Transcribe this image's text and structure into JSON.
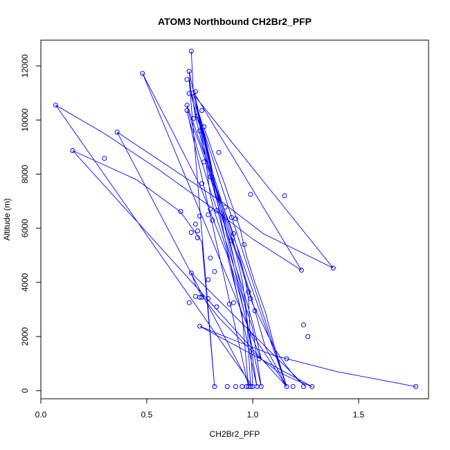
{
  "chart_data": {
    "type": "line",
    "title": "ATOM3 Northbound CH2Br2_PFP",
    "xlabel": "CH2Br2_PFP",
    "ylabel": "Altitude (m)",
    "xlim": [
      0,
      1.83
    ],
    "ylim": [
      -300,
      12950
    ],
    "xticks": [
      0.0,
      0.5,
      1.0,
      1.5
    ],
    "xtick_labels": [
      "0.0",
      "0.5",
      "1.0",
      "1.5"
    ],
    "yticks": [
      0,
      2000,
      4000,
      6000,
      8000,
      10000,
      12000
    ],
    "ytick_labels": [
      "0",
      "2000",
      "4000",
      "6000",
      "8000",
      "10000",
      "12000"
    ],
    "markers": "open-circle",
    "grid": false,
    "legend": "none",
    "series_color": "#0000ff",
    "series": [
      {
        "x": [
          0.71,
          0.72,
          0.73,
          0.74,
          0.75,
          0.76,
          0.77,
          0.78,
          0.79,
          0.8,
          0.82,
          0.85,
          0.88,
          0.91,
          0.94,
          0.97,
          0.99,
          1.02,
          0.7,
          0.71,
          0.72,
          0.74,
          0.76,
          0.78,
          0.8,
          0.83,
          0.86,
          0.9,
          0.93,
          0.96,
          0.98,
          1.0,
          0.07,
          0.3,
          0.55,
          0.8,
          1.0,
          1.23,
          0.72,
          0.73,
          0.74,
          0.76,
          0.78,
          0.8,
          0.82,
          0.85,
          0.88,
          0.92,
          0.95,
          0.97,
          0.99,
          0.36,
          0.6,
          0.85,
          1.05,
          1.38,
          0.72,
          0.74,
          0.75,
          0.77,
          0.79,
          0.81,
          0.84,
          0.87,
          0.9,
          0.93,
          0.96,
          0.98,
          1.16,
          0.15,
          0.45,
          0.66,
          0.76,
          0.82,
          0.7,
          0.71,
          0.72,
          0.73,
          0.75,
          0.76,
          0.78,
          0.8,
          0.82,
          0.85,
          0.89,
          0.92,
          0.96,
          1.0,
          1.04,
          0.48,
          0.6,
          0.75,
          0.88,
          0.95,
          0.98,
          0.69,
          0.7,
          0.72,
          0.74,
          0.77,
          0.8,
          0.84,
          0.87,
          0.91,
          0.95,
          1.0,
          1.04,
          0.73,
          0.74,
          0.76,
          0.79,
          0.82,
          0.86,
          0.9,
          0.94,
          0.97,
          1.01,
          1.06,
          1.1,
          1.16,
          0.69,
          0.7,
          0.72,
          0.75,
          0.78,
          0.81,
          0.85,
          0.89,
          0.94,
          0.98,
          1.02,
          1.06,
          1.11,
          1.16,
          0.71,
          0.72,
          0.73,
          0.75,
          0.77,
          0.8,
          0.84,
          0.88,
          0.92,
          0.96,
          1.0,
          1.05,
          1.1,
          1.15,
          1.2,
          1.25,
          0.71,
          0.73,
          0.76,
          0.8,
          0.84,
          0.89,
          0.94,
          0.99,
          1.05,
          1.12,
          1.2,
          1.28,
          0.75,
          0.9,
          1.1,
          1.4,
          1.77
        ],
        "y": [
          12540,
          11000,
          10800,
          10300,
          9900,
          9500,
          9000,
          8400,
          7800,
          7200,
          6600,
          5900,
          5100,
          4300,
          3500,
          2600,
          1700,
          150,
          11800,
          10900,
          10600,
          10100,
          9600,
          9000,
          8300,
          7600,
          6800,
          6000,
          5200,
          4300,
          3400,
          150,
          10550,
          9500,
          8200,
          6800,
          5600,
          4450,
          11050,
          10700,
          10300,
          9800,
          9200,
          8500,
          7700,
          6900,
          6000,
          5100,
          4100,
          3000,
          150,
          9550,
          8300,
          7000,
          5800,
          4530,
          10950,
          10500,
          10000,
          9400,
          8700,
          7900,
          7000,
          6100,
          5200,
          4300,
          3300,
          2300,
          150,
          8870,
          7800,
          6600,
          5500,
          150,
          11500,
          11000,
          10600,
          10200,
          9800,
          9300,
          8700,
          8000,
          7300,
          6500,
          5600,
          4600,
          3600,
          2500,
          1180,
          11720,
          9900,
          7600,
          5000,
          2800,
          150,
          10350,
          10000,
          9500,
          8900,
          8200,
          7400,
          6500,
          5600,
          4600,
          3500,
          2300,
          150,
          10800,
          10400,
          9900,
          9300,
          8600,
          7800,
          6900,
          6000,
          5000,
          4000,
          2900,
          1700,
          150,
          10550,
          10200,
          9700,
          9100,
          8400,
          7600,
          6700,
          5800,
          4800,
          3800,
          2700,
          1600,
          900,
          150,
          11000,
          10600,
          10100,
          9500,
          8800,
          8000,
          7100,
          6200,
          5200,
          4200,
          3200,
          2400,
          1600,
          1000,
          500,
          150,
          4350,
          3900,
          3500,
          3100,
          2700,
          2300,
          1900,
          1500,
          1100,
          700,
          400,
          150,
          2380,
          1900,
          1300,
          700,
          150
        ]
      }
    ],
    "points": [
      [
        0.71,
        12540
      ],
      [
        0.48,
        11720
      ],
      [
        0.7,
        11800
      ],
      [
        0.69,
        11500
      ],
      [
        0.73,
        11050
      ],
      [
        0.72,
        11000
      ],
      [
        0.7,
        10980
      ],
      [
        0.07,
        10550
      ],
      [
        0.69,
        10550
      ],
      [
        0.76,
        10350
      ],
      [
        0.69,
        10350
      ],
      [
        0.72,
        10050
      ],
      [
        0.74,
        10150
      ],
      [
        0.36,
        9550
      ],
      [
        0.77,
        9750
      ],
      [
        0.75,
        9600
      ],
      [
        0.15,
        8870
      ],
      [
        0.84,
        8800
      ],
      [
        0.3,
        8580
      ],
      [
        0.77,
        8450
      ],
      [
        0.8,
        7900
      ],
      [
        0.76,
        7650
      ],
      [
        0.99,
        7250
      ],
      [
        1.15,
        7200
      ],
      [
        0.87,
        6780
      ],
      [
        0.66,
        6620
      ],
      [
        0.8,
        6700
      ],
      [
        0.83,
        6650
      ],
      [
        0.79,
        6500
      ],
      [
        0.9,
        6400
      ],
      [
        0.92,
        6350
      ],
      [
        0.75,
        6450
      ],
      [
        0.81,
        6300
      ],
      [
        0.73,
        6150
      ],
      [
        0.71,
        5850
      ],
      [
        0.74,
        5900
      ],
      [
        0.91,
        5800
      ],
      [
        0.9,
        5550
      ],
      [
        0.74,
        5650
      ],
      [
        0.96,
        5400
      ],
      [
        0.8,
        4900
      ],
      [
        1.38,
        4530
      ],
      [
        1.23,
        4450
      ],
      [
        0.71,
        4350
      ],
      [
        0.82,
        4400
      ],
      [
        0.79,
        4100
      ],
      [
        0.98,
        3650
      ],
      [
        0.99,
        3400
      ],
      [
        0.73,
        3480
      ],
      [
        0.75,
        3450
      ],
      [
        0.76,
        3450
      ],
      [
        0.79,
        3400
      ],
      [
        0.7,
        3250
      ],
      [
        0.91,
        3250
      ],
      [
        0.89,
        3200
      ],
      [
        0.83,
        3100
      ],
      [
        1.01,
        2950
      ],
      [
        1.24,
        2430
      ],
      [
        0.75,
        2380
      ],
      [
        1.26,
        2000
      ],
      [
        1.16,
        1180
      ],
      [
        1.03,
        1180
      ],
      [
        0.82,
        150
      ],
      [
        0.88,
        150
      ],
      [
        0.92,
        150
      ],
      [
        0.95,
        150
      ],
      [
        0.97,
        150
      ],
      [
        0.98,
        150
      ],
      [
        0.99,
        150
      ],
      [
        1.0,
        150
      ],
      [
        1.02,
        150
      ],
      [
        1.04,
        150
      ],
      [
        1.16,
        150
      ],
      [
        1.19,
        150
      ],
      [
        1.24,
        150
      ],
      [
        1.28,
        150
      ],
      [
        1.77,
        150
      ]
    ]
  }
}
